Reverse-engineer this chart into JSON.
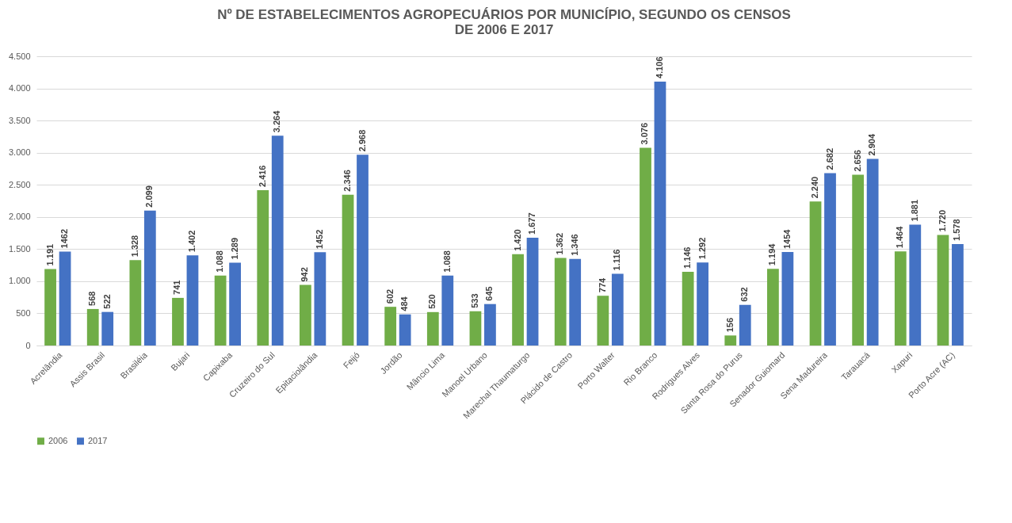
{
  "chart_data": {
    "type": "bar",
    "title": "Nº DE ESTABELECIMENTOS  AGROPECUÁRIOS POR MUNICÍPIO, SEGUNDO OS CENSOS\nDE 2006 E 2017",
    "categories": [
      "Acrelândia",
      "Assis Brasil",
      "Brasiléia",
      "Bujari",
      "Capixaba",
      "Cruzeiro do Sul",
      "Epitaciolândia",
      "Feijó",
      "Jordão",
      "Mâncio Lima",
      "Manoel Urbano",
      "Marechal Thaumaturgo",
      "Plácido de Castro",
      "Porto Walter",
      "Rio Branco",
      "Rodrigues Alves",
      "Santa Rosa do Purus",
      "Senador Guiomard",
      "Sena Madureira",
      "Tarauacá",
      "Xapuri",
      "Porto Acre (AC)"
    ],
    "series": [
      {
        "name": "2006",
        "color": "#70ad47",
        "values": [
          1191,
          568,
          1328,
          741,
          1088,
          2416,
          942,
          2346,
          602,
          520,
          533,
          1420,
          1362,
          774,
          3076,
          1146,
          156,
          1194,
          2240,
          2656,
          1464,
          1720
        ],
        "value_labels": [
          "1.191",
          "568",
          "1.328",
          "741",
          "1.088",
          "2.416",
          "942",
          "2.346",
          "602",
          "520",
          "533",
          "1.420",
          "1.362",
          "774",
          "3.076",
          "1.146",
          "156",
          "1.194",
          "2.240",
          "2.656",
          "1.464",
          "1.720"
        ]
      },
      {
        "name": "2017",
        "color": "#4472c4",
        "values": [
          1462,
          522,
          2099,
          1402,
          1289,
          3264,
          1452,
          2968,
          484,
          1088,
          645,
          1677,
          1346,
          1116,
          4106,
          1292,
          632,
          1454,
          2682,
          2904,
          1881,
          1578
        ],
        "value_labels": [
          "1462",
          "522",
          "2.099",
          "1.402",
          "1.289",
          "3.264",
          "1452",
          "2.968",
          "484",
          "1.088",
          "645",
          "1.677",
          "1.346",
          "1.116",
          "4.106",
          "1.292",
          "632",
          "1454",
          "2.682",
          "2.904",
          "1.881",
          "1.578"
        ]
      }
    ],
    "ylim": [
      0,
      4500
    ],
    "yticks": [
      0,
      {
        "value": 500,
        "label": "500"
      },
      {
        "value": 1000,
        "label": "1.000"
      },
      {
        "value": 1500,
        "label": "1.500"
      },
      {
        "value": 2000,
        "label": "2.000"
      },
      {
        "value": 2500,
        "label": "2.500"
      },
      {
        "value": 3000,
        "label": "3.000"
      },
      {
        "value": 3500,
        "label": "3.500"
      },
      {
        "value": 4000,
        "label": "4.000"
      },
      {
        "value": 4500,
        "label": "4.500"
      }
    ],
    "grid": "y",
    "legend": "bottom"
  }
}
